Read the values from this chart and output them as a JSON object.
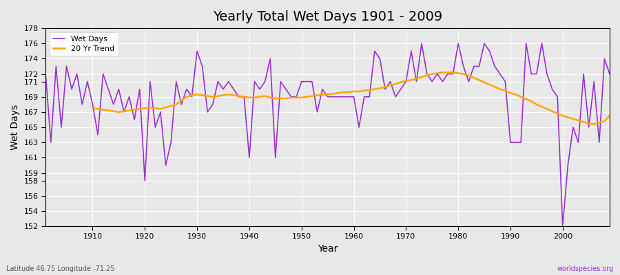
{
  "title": "Yearly Total Wet Days 1901 - 2009",
  "xlabel": "Year",
  "ylabel": "Wet Days",
  "bottom_left_label": "Latitude 46.75 Longitude -71.25",
  "bottom_right_label": "worldspecies.org",
  "ylim": [
    152,
    178
  ],
  "xlim": [
    1901,
    2009
  ],
  "yticks": [
    152,
    154,
    156,
    158,
    159,
    161,
    163,
    165,
    167,
    169,
    171,
    172,
    174,
    176,
    178
  ],
  "xticks": [
    1910,
    1920,
    1930,
    1940,
    1950,
    1960,
    1970,
    1980,
    1990,
    2000
  ],
  "wet_days_color": "#9B30D0",
  "trend_color": "#FFA500",
  "background_color": "#E8E8E8",
  "grid_color": "#FFFFFF",
  "legend_wet": "Wet Days",
  "legend_trend": "20 Yr Trend",
  "years": [
    1901,
    1902,
    1903,
    1904,
    1905,
    1906,
    1907,
    1908,
    1909,
    1910,
    1911,
    1912,
    1913,
    1914,
    1915,
    1916,
    1917,
    1918,
    1919,
    1920,
    1921,
    1922,
    1923,
    1924,
    1925,
    1926,
    1927,
    1928,
    1929,
    1930,
    1931,
    1932,
    1933,
    1934,
    1935,
    1936,
    1937,
    1938,
    1939,
    1940,
    1941,
    1942,
    1943,
    1944,
    1945,
    1946,
    1947,
    1948,
    1949,
    1950,
    1951,
    1952,
    1953,
    1954,
    1955,
    1956,
    1957,
    1958,
    1959,
    1960,
    1961,
    1962,
    1963,
    1964,
    1965,
    1966,
    1967,
    1968,
    1969,
    1970,
    1971,
    1972,
    1973,
    1974,
    1975,
    1976,
    1977,
    1978,
    1979,
    1980,
    1981,
    1982,
    1983,
    1984,
    1985,
    1986,
    1987,
    1988,
    1989,
    1990,
    1991,
    1992,
    1993,
    1994,
    1995,
    1996,
    1997,
    1998,
    1999,
    2000,
    2001,
    2002,
    2003,
    2004,
    2005,
    2006,
    2007,
    2008,
    2009
  ],
  "wet_days": [
    172,
    163,
    173,
    165,
    173,
    170,
    172,
    168,
    171,
    168,
    164,
    172,
    170,
    168,
    170,
    167,
    169,
    166,
    170,
    158,
    171,
    165,
    167,
    160,
    163,
    171,
    168,
    170,
    169,
    175,
    173,
    167,
    168,
    171,
    170,
    171,
    170,
    169,
    169,
    161,
    171,
    170,
    171,
    174,
    161,
    171,
    170,
    169,
    169,
    171,
    171,
    171,
    167,
    170,
    169,
    169,
    169,
    169,
    169,
    169,
    165,
    169,
    169,
    175,
    174,
    170,
    171,
    169,
    170,
    171,
    175,
    171,
    176,
    172,
    171,
    172,
    171,
    172,
    172,
    176,
    173,
    171,
    173,
    173,
    176,
    175,
    173,
    172,
    171,
    163,
    163,
    163,
    176,
    172,
    172,
    176,
    172,
    170,
    169,
    152,
    160,
    165,
    163,
    172,
    165,
    171,
    163,
    174,
    172
  ],
  "trend_years": [
    1910,
    1911,
    1912,
    1913,
    1914,
    1915,
    1916,
    1917,
    1918,
    1919,
    1920,
    1921,
    1922,
    1923,
    1924,
    1925,
    1926,
    1927,
    1928,
    1929,
    1930,
    1931,
    1932,
    1933,
    1934,
    1935,
    1936,
    1937,
    1938,
    1939,
    1940,
    1941,
    1942,
    1943,
    1944,
    1945,
    1946,
    1947,
    1948,
    1949,
    1950,
    1951,
    1952,
    1953,
    1954,
    1955,
    1956,
    1957,
    1958,
    1959,
    1960,
    1961,
    1962,
    1963,
    1964,
    1965,
    1966,
    1967,
    1968,
    1969,
    1970,
    1971,
    1972,
    1973,
    1974,
    1975,
    1976,
    1977,
    1978,
    1979,
    1980,
    1981,
    1982,
    1983,
    1984,
    1985,
    1986,
    1987,
    1988,
    1989,
    1990,
    1991,
    1992,
    1993,
    1994,
    1995,
    1996,
    1997,
    1998,
    1999,
    2000,
    2001,
    2002,
    2003,
    2004,
    2005,
    2006,
    2007,
    2008,
    2009
  ],
  "trend_values": [
    167.5,
    167.4,
    167.3,
    167.2,
    167.1,
    167.0,
    167.1,
    167.2,
    167.3,
    167.4,
    167.5,
    167.6,
    167.5,
    167.4,
    167.6,
    167.8,
    168.0,
    168.5,
    169.0,
    169.2,
    169.3,
    169.2,
    169.1,
    169.0,
    169.1,
    169.2,
    169.3,
    169.2,
    169.1,
    169.0,
    168.9,
    168.9,
    169.0,
    169.1,
    168.9,
    168.8,
    168.8,
    168.8,
    168.9,
    168.9,
    168.9,
    169.0,
    169.1,
    169.2,
    169.3,
    169.3,
    169.4,
    169.5,
    169.6,
    169.6,
    169.7,
    169.7,
    169.8,
    169.9,
    170.0,
    170.1,
    170.3,
    170.5,
    170.7,
    170.9,
    171.1,
    171.2,
    171.4,
    171.6,
    171.8,
    172.0,
    172.1,
    172.2,
    172.2,
    172.2,
    172.1,
    172.0,
    171.8,
    171.5,
    171.2,
    170.9,
    170.6,
    170.3,
    170.0,
    169.8,
    169.5,
    169.3,
    169.0,
    168.7,
    168.4,
    168.0,
    167.7,
    167.4,
    167.1,
    166.8,
    166.5,
    166.3,
    166.1,
    165.9,
    165.7,
    165.5,
    165.4,
    165.6,
    165.8,
    166.5
  ]
}
